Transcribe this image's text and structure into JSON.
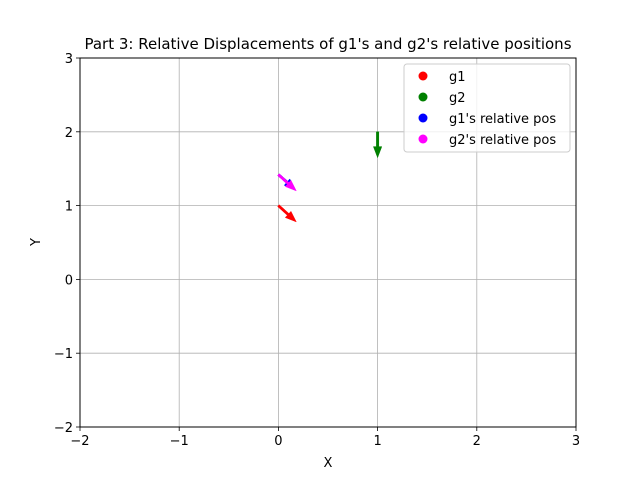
{
  "chart_data": {
    "type": "quiver",
    "title": "Part 3: Relative Displacements of g1's and g2's relative positions",
    "xlabel": "X",
    "ylabel": "Y",
    "xlim": [
      -2,
      3
    ],
    "ylim": [
      -2,
      3
    ],
    "xticks": [
      -2,
      -1,
      0,
      1,
      2,
      3
    ],
    "yticks": [
      -2,
      -1,
      0,
      1,
      2,
      3
    ],
    "xtick_labels": [
      "−2",
      "−1",
      "0",
      "1",
      "2",
      "3"
    ],
    "ytick_labels": [
      "−2",
      "−1",
      "0",
      "1",
      "2",
      "3"
    ],
    "grid": true,
    "legend_position": "top-right",
    "series": [
      {
        "name": "g1",
        "color": "#ff0000",
        "arrows": [
          {
            "x": 0.0,
            "y": 1.0,
            "u": 0.18,
            "v": -0.22
          }
        ]
      },
      {
        "name": "g2",
        "color": "#008000",
        "arrows": [
          {
            "x": 1.0,
            "y": 2.0,
            "u": 0.0,
            "v": -0.35
          }
        ]
      },
      {
        "name": "g1's relative pos",
        "color": "#0000ff",
        "arrows": [
          {
            "x": 0.0,
            "y": 1.42,
            "u": 0.17,
            "v": -0.2
          }
        ]
      },
      {
        "name": "g2's relative pos",
        "color": "#ff00ff",
        "arrows": [
          {
            "x": 0.0,
            "y": 1.42,
            "u": 0.18,
            "v": -0.22
          }
        ]
      }
    ]
  }
}
